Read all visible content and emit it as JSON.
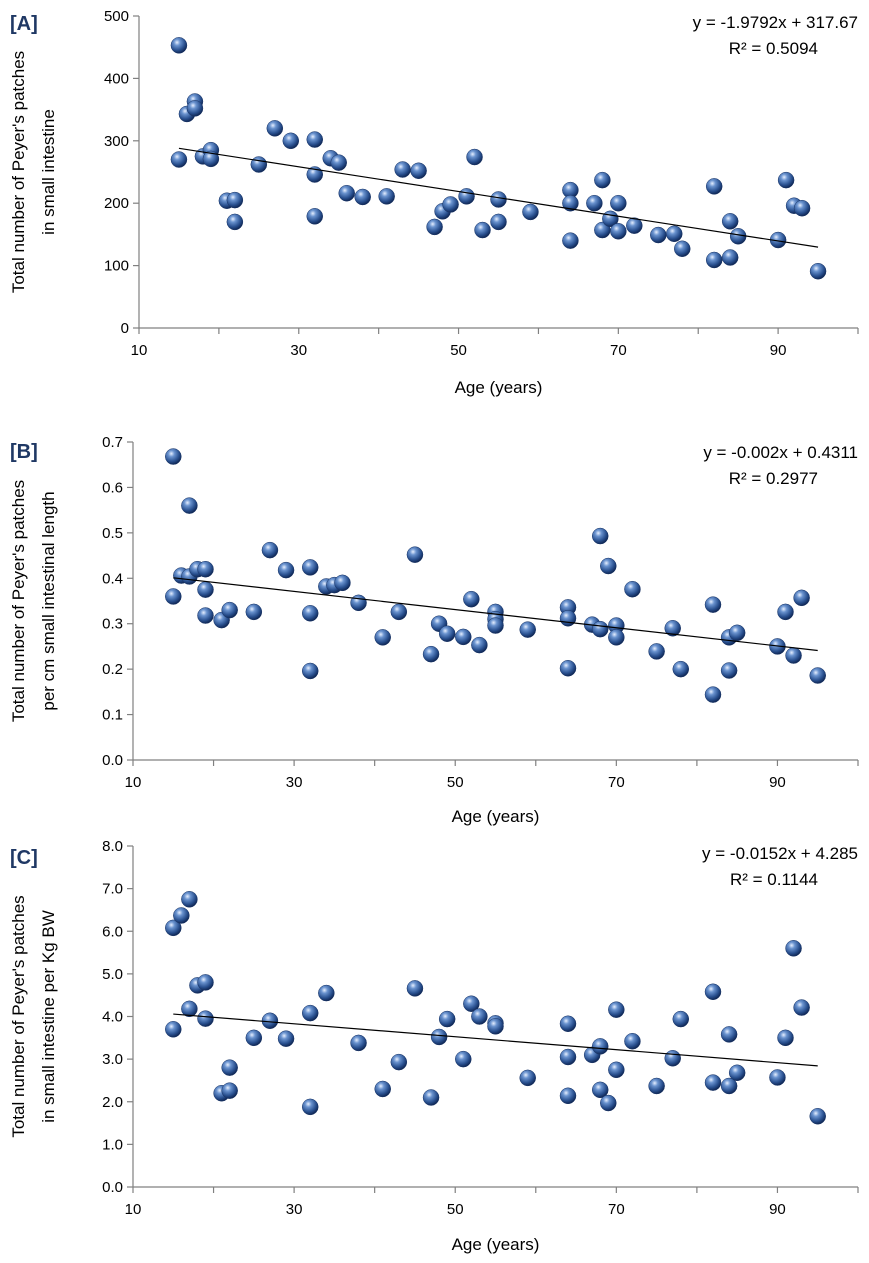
{
  "chart_data": [
    {
      "type": "scatter",
      "panel_label": "[A]",
      "xlabel": "Age (years)",
      "ylabel": [
        "Total number of Peyer's patches",
        "in small intestine"
      ],
      "xlim": [
        10,
        100
      ],
      "ylim": [
        0,
        500
      ],
      "xticks": [
        10,
        30,
        50,
        70,
        90
      ],
      "yticks": [
        0,
        100,
        200,
        300,
        400,
        500
      ],
      "tick_decimals": 0,
      "trend": {
        "slope": -1.9792,
        "intercept": 317.67,
        "x_range": [
          15,
          95
        ]
      },
      "equation": "y = -1.9792x + 317.67",
      "r2": "R² = 0.5094",
      "points": [
        [
          15,
          453
        ],
        [
          15,
          270
        ],
        [
          16,
          343
        ],
        [
          17,
          363
        ],
        [
          17,
          352
        ],
        [
          18,
          275
        ],
        [
          19,
          285
        ],
        [
          19,
          271
        ],
        [
          21,
          204
        ],
        [
          22,
          205
        ],
        [
          22,
          170
        ],
        [
          25,
          262
        ],
        [
          27,
          320
        ],
        [
          29,
          300
        ],
        [
          32,
          302
        ],
        [
          32,
          246
        ],
        [
          32,
          179
        ],
        [
          34,
          272
        ],
        [
          35,
          265
        ],
        [
          36,
          216
        ],
        [
          38,
          210
        ],
        [
          41,
          211
        ],
        [
          43,
          254
        ],
        [
          45,
          252
        ],
        [
          47,
          162
        ],
        [
          48,
          187
        ],
        [
          49,
          198
        ],
        [
          51,
          211
        ],
        [
          52,
          274
        ],
        [
          53,
          157
        ],
        [
          55,
          206
        ],
        [
          55,
          170
        ],
        [
          59,
          186
        ],
        [
          64,
          221
        ],
        [
          64,
          200
        ],
        [
          64,
          140
        ],
        [
          67,
          200
        ],
        [
          68,
          237
        ],
        [
          68,
          157
        ],
        [
          69,
          175
        ],
        [
          70,
          200
        ],
        [
          70,
          155
        ],
        [
          72,
          164
        ],
        [
          75,
          149
        ],
        [
          77,
          151
        ],
        [
          78,
          127
        ],
        [
          82,
          227
        ],
        [
          82,
          109
        ],
        [
          84,
          171
        ],
        [
          84,
          113
        ],
        [
          85,
          147
        ],
        [
          90,
          141
        ],
        [
          91,
          237
        ],
        [
          92,
          196
        ],
        [
          93,
          192
        ],
        [
          95,
          91
        ]
      ]
    },
    {
      "type": "scatter",
      "panel_label": "[B]",
      "xlabel": "Age (years)",
      "ylabel": [
        "Total number of Peyer's patches",
        "per cm small intestinal length"
      ],
      "xlim": [
        10,
        100
      ],
      "ylim": [
        0,
        0.7
      ],
      "xticks": [
        10,
        30,
        50,
        70,
        90
      ],
      "yticks": [
        0,
        0.1,
        0.2,
        0.3,
        0.4,
        0.5,
        0.6,
        0.7
      ],
      "tick_decimals": 1,
      "trend": {
        "slope": -0.002,
        "intercept": 0.4311,
        "x_range": [
          15,
          95
        ]
      },
      "equation": "y = -0.002x + 0.4311",
      "r2": "R² = 0.2977",
      "points": [
        [
          15,
          0.668
        ],
        [
          15,
          0.36
        ],
        [
          16,
          0.406
        ],
        [
          17,
          0.56
        ],
        [
          17,
          0.404
        ],
        [
          18,
          0.42
        ],
        [
          19,
          0.42
        ],
        [
          19,
          0.375
        ],
        [
          19,
          0.318
        ],
        [
          21,
          0.308
        ],
        [
          22,
          0.33
        ],
        [
          25,
          0.326
        ],
        [
          27,
          0.462
        ],
        [
          29,
          0.418
        ],
        [
          32,
          0.424
        ],
        [
          32,
          0.323
        ],
        [
          32,
          0.196
        ],
        [
          34,
          0.382
        ],
        [
          35,
          0.385
        ],
        [
          36,
          0.39
        ],
        [
          38,
          0.346
        ],
        [
          41,
          0.27
        ],
        [
          43,
          0.326
        ],
        [
          45,
          0.452
        ],
        [
          47,
          0.233
        ],
        [
          48,
          0.3
        ],
        [
          49,
          0.278
        ],
        [
          51,
          0.271
        ],
        [
          52,
          0.354
        ],
        [
          53,
          0.253
        ],
        [
          55,
          0.326
        ],
        [
          55,
          0.31
        ],
        [
          55,
          0.296
        ],
        [
          59,
          0.287
        ],
        [
          64,
          0.336
        ],
        [
          64,
          0.312
        ],
        [
          64,
          0.202
        ],
        [
          67,
          0.298
        ],
        [
          68,
          0.493
        ],
        [
          68,
          0.288
        ],
        [
          69,
          0.427
        ],
        [
          70,
          0.296
        ],
        [
          70,
          0.27
        ],
        [
          72,
          0.376
        ],
        [
          75,
          0.239
        ],
        [
          77,
          0.29
        ],
        [
          78,
          0.2
        ],
        [
          82,
          0.342
        ],
        [
          82,
          0.144
        ],
        [
          84,
          0.27
        ],
        [
          84,
          0.197
        ],
        [
          85,
          0.28
        ],
        [
          90,
          0.25
        ],
        [
          91,
          0.326
        ],
        [
          92,
          0.23
        ],
        [
          93,
          0.357
        ],
        [
          95,
          0.186
        ]
      ]
    },
    {
      "type": "scatter",
      "panel_label": "[C]",
      "xlabel": "Age (years)",
      "ylabel": [
        "Total number of Peyer's patches",
        "in small intestine  per Kg BW"
      ],
      "xlim": [
        10,
        100
      ],
      "ylim": [
        0,
        8
      ],
      "xticks": [
        10,
        30,
        50,
        70,
        90
      ],
      "yticks": [
        0,
        1,
        2,
        3,
        4,
        5,
        6,
        7,
        8
      ],
      "tick_decimals": 1,
      "trend": {
        "slope": -0.0152,
        "intercept": 4.285,
        "x_range": [
          15,
          95
        ]
      },
      "equation": "y = -0.0152x + 4.285",
      "r2": "R² = 0.1144",
      "points": [
        [
          15,
          6.08
        ],
        [
          15,
          3.7
        ],
        [
          16,
          6.37
        ],
        [
          17,
          6.75
        ],
        [
          17,
          4.18
        ],
        [
          18,
          4.73
        ],
        [
          19,
          4.8
        ],
        [
          19,
          3.95
        ],
        [
          21,
          2.2
        ],
        [
          22,
          2.8
        ],
        [
          22,
          2.26
        ],
        [
          25,
          3.5
        ],
        [
          27,
          3.9
        ],
        [
          29,
          3.48
        ],
        [
          32,
          4.08
        ],
        [
          32,
          1.88
        ],
        [
          34,
          4.55
        ],
        [
          38,
          3.38
        ],
        [
          41,
          2.3
        ],
        [
          43,
          2.93
        ],
        [
          45,
          4.66
        ],
        [
          47,
          2.1
        ],
        [
          48,
          3.52
        ],
        [
          49,
          3.94
        ],
        [
          51,
          3.0
        ],
        [
          52,
          4.3
        ],
        [
          53,
          4.0
        ],
        [
          55,
          3.84
        ],
        [
          55,
          3.77
        ],
        [
          59,
          2.56
        ],
        [
          64,
          3.83
        ],
        [
          64,
          3.05
        ],
        [
          64,
          2.14
        ],
        [
          67,
          3.1
        ],
        [
          68,
          3.3
        ],
        [
          68,
          2.28
        ],
        [
          69,
          1.97
        ],
        [
          70,
          4.16
        ],
        [
          70,
          2.75
        ],
        [
          72,
          3.42
        ],
        [
          75,
          2.37
        ],
        [
          77,
          3.02
        ],
        [
          78,
          3.94
        ],
        [
          82,
          4.58
        ],
        [
          82,
          2.45
        ],
        [
          84,
          3.58
        ],
        [
          84,
          2.37
        ],
        [
          85,
          2.68
        ],
        [
          90,
          2.57
        ],
        [
          91,
          3.5
        ],
        [
          92,
          5.6
        ],
        [
          93,
          4.21
        ],
        [
          95,
          1.66
        ]
      ]
    }
  ]
}
